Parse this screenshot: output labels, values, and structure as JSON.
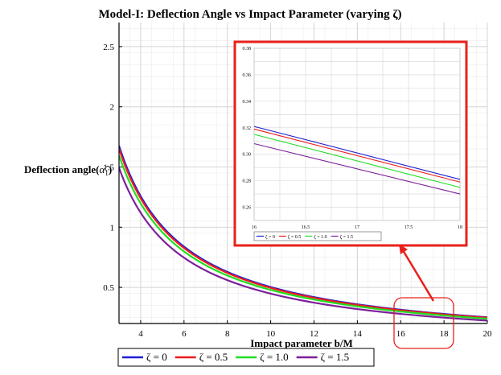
{
  "chart_data": [
    {
      "type": "line",
      "title": "Model-I: Deflection Angle vs Impact Parameter (varying ζ)",
      "xlabel": "Impact parameter b/M",
      "ylabel_text": "Deflection angle",
      "ylabel_symbol_base": "α̂",
      "ylabel_symbol_sub": "1",
      "xlim": [
        3,
        20
      ],
      "ylim": [
        0.2,
        2.7
      ],
      "xticks": [
        4,
        6,
        8,
        10,
        12,
        14,
        16,
        18,
        20
      ],
      "yticks": [
        0.5,
        1,
        1.5,
        2,
        2.5
      ],
      "grid": true,
      "legend_position": "bottom",
      "series": [
        {
          "name": "ζ = 0",
          "color": "#1f1fd6",
          "coef": 5.03
        },
        {
          "name": "ζ = 0.5",
          "color": "#ee1c1c",
          "coef": 4.96
        },
        {
          "name": "ζ = 1.0",
          "color": "#22dd22",
          "coef": 4.79
        },
        {
          "name": "ζ = 1.5",
          "color": "#7e1f9a",
          "coef": 4.48
        }
      ]
    },
    {
      "type": "line",
      "title": "",
      "xlim": [
        16,
        18
      ],
      "ylim": [
        0.25,
        0.38
      ],
      "xticks": [
        "16",
        "16.5",
        "17",
        "17.5",
        "18"
      ],
      "yticks": [
        "0.26",
        "0.28",
        "0.30",
        "0.32",
        "0.34",
        "0.36",
        "0.38"
      ],
      "grid": true,
      "legend_position": "bottom",
      "series": [
        {
          "name": "ζ = 0",
          "color": "#1f1fd6",
          "values": [
            0.321,
            0.281
          ]
        },
        {
          "name": "ζ = 0.5",
          "color": "#ee1c1c",
          "values": [
            0.319,
            0.279
          ]
        },
        {
          "name": "ζ = 1.0",
          "color": "#22dd22",
          "values": [
            0.315,
            0.275
          ]
        },
        {
          "name": "ζ = 1.5",
          "color": "#7e1f9a",
          "values": [
            0.308,
            0.27
          ]
        }
      ]
    }
  ],
  "colors": {
    "highlight": "#e8201a",
    "grid": "#d4d4d4",
    "minor_grid": "#ececec"
  }
}
